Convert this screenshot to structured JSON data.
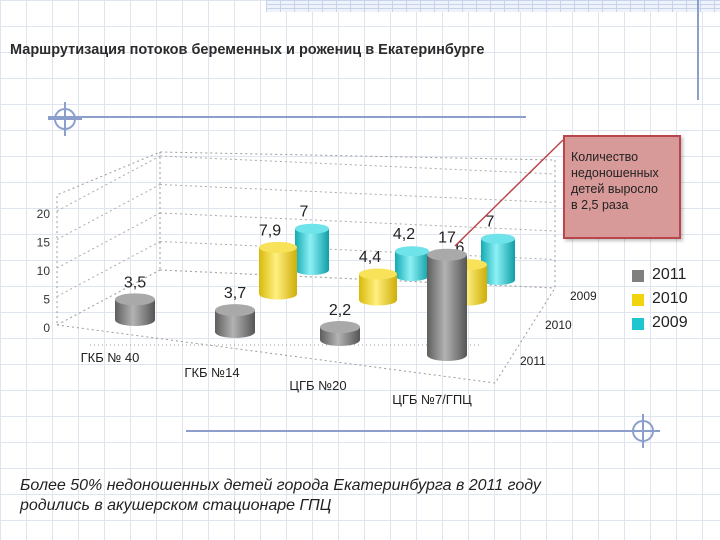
{
  "page": {
    "title": "Маршрутизация потоков беременных и рожениц в Екатеринбурге",
    "callout": "Количество\nнедоношенных\nдетей выросло\nв 2,5 раза",
    "footer_text": "Более 50% недоношенных детей города Екатеринбурга в 2011 году\nродились в акушерском стационаре ГПЦ"
  },
  "colors": {
    "2011": "#808080",
    "2010": "#f2d40e",
    "2009": "#1ec6cf"
  },
  "chart_data": {
    "type": "bar",
    "subtype": "3d-column",
    "categories": [
      "ГКБ № 40",
      "ГКБ №14",
      "ЦГБ №20",
      "ЦГБ №7/ГПЦ"
    ],
    "series": [
      {
        "name": "2011",
        "values": [
          3.5,
          3.7,
          2.2,
          17
        ]
      },
      {
        "name": "2010",
        "values": [
          null,
          7.9,
          4.4,
          6
        ]
      },
      {
        "name": "2009",
        "values": [
          null,
          7,
          4.2,
          7
        ]
      }
    ],
    "data_labels": [
      [
        "3,5",
        "3,7",
        "2,2",
        "17"
      ],
      [
        "",
        "7,9",
        "4,4",
        "6"
      ],
      [
        "",
        "7",
        "4,2",
        "7"
      ]
    ],
    "yticks": [
      "0",
      "5",
      "10",
      "15",
      "20"
    ],
    "ylim": [
      0,
      20
    ],
    "legend_position": "right",
    "grid": true
  }
}
